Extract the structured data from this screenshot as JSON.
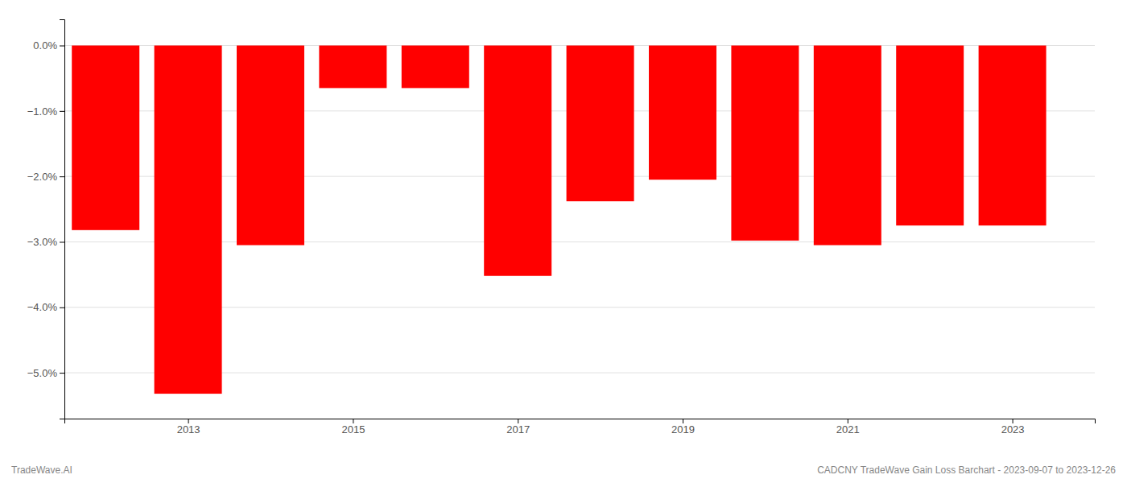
{
  "chart_data": {
    "type": "bar",
    "x": [
      2012,
      2013,
      2014,
      2015,
      2016,
      2017,
      2018,
      2019,
      2020,
      2021,
      2022,
      2023
    ],
    "values": [
      -0.0282,
      -0.0532,
      -0.0305,
      -0.0065,
      -0.0065,
      -0.0352,
      -0.0238,
      -0.0205,
      -0.0298,
      -0.0305,
      -0.0275,
      -0.0275
    ],
    "color": "#ff0000",
    "xlim": [
      2011.5,
      2024.0
    ],
    "xticks": [
      2013,
      2015,
      2017,
      2019,
      2021,
      2023
    ],
    "ylim": [
      -0.057,
      0.004
    ],
    "yticks": [
      {
        "value": 0.0,
        "label": "0.0%"
      },
      {
        "value": -0.01,
        "label": "−1.0%"
      },
      {
        "value": -0.02,
        "label": "−2.0%"
      },
      {
        "value": -0.03,
        "label": "−3.0%"
      },
      {
        "value": -0.04,
        "label": "−4.0%"
      },
      {
        "value": -0.05,
        "label": "−5.0%"
      }
    ],
    "grid": true,
    "annotations": [
      "TradeWave.AI",
      "CADCNY TradeWave Gain Loss Barchart - 2023-09-07 to 2023-12-26"
    ]
  }
}
